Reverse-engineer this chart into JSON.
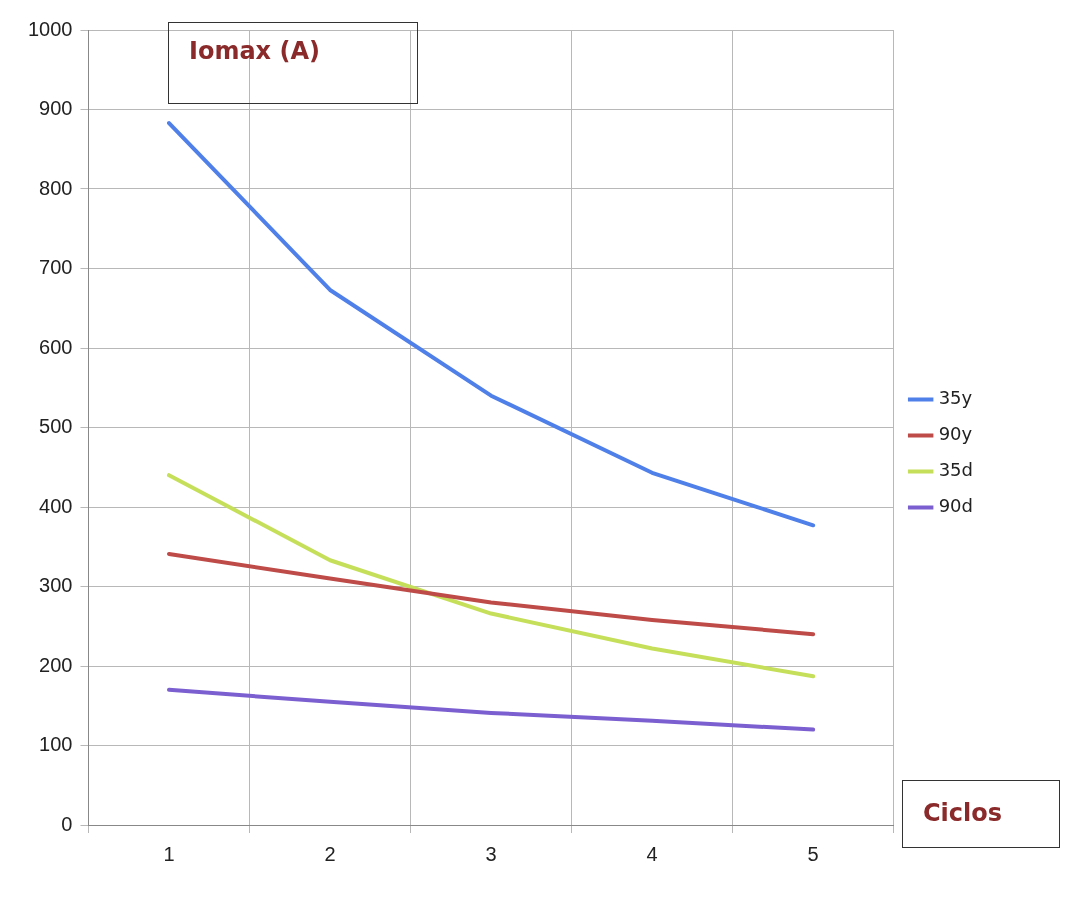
{
  "chart_data": {
    "type": "line",
    "xlabel": "Ciclos",
    "ylabel": "Iomax (A)",
    "categories": [
      "1",
      "2",
      "3",
      "4",
      "5"
    ],
    "series": [
      {
        "name": "35y",
        "color": "#4f7fe8",
        "values": [
          883,
          673,
          540,
          443,
          377
        ]
      },
      {
        "name": "90y",
        "color": "#be4b48",
        "values": [
          341,
          310,
          280,
          258,
          240
        ]
      },
      {
        "name": "35d",
        "color": "#c6df5a",
        "values": [
          440,
          333,
          266,
          222,
          187
        ]
      },
      {
        "name": "90d",
        "color": "#7b5fd0",
        "values": [
          170,
          155,
          141,
          131,
          120
        ]
      }
    ],
    "ylim": [
      0,
      1000
    ],
    "yticks": [
      0,
      100,
      200,
      300,
      400,
      500,
      600,
      700,
      800,
      900,
      1000
    ],
    "grid": true,
    "legend": "right",
    "marker": "none"
  }
}
